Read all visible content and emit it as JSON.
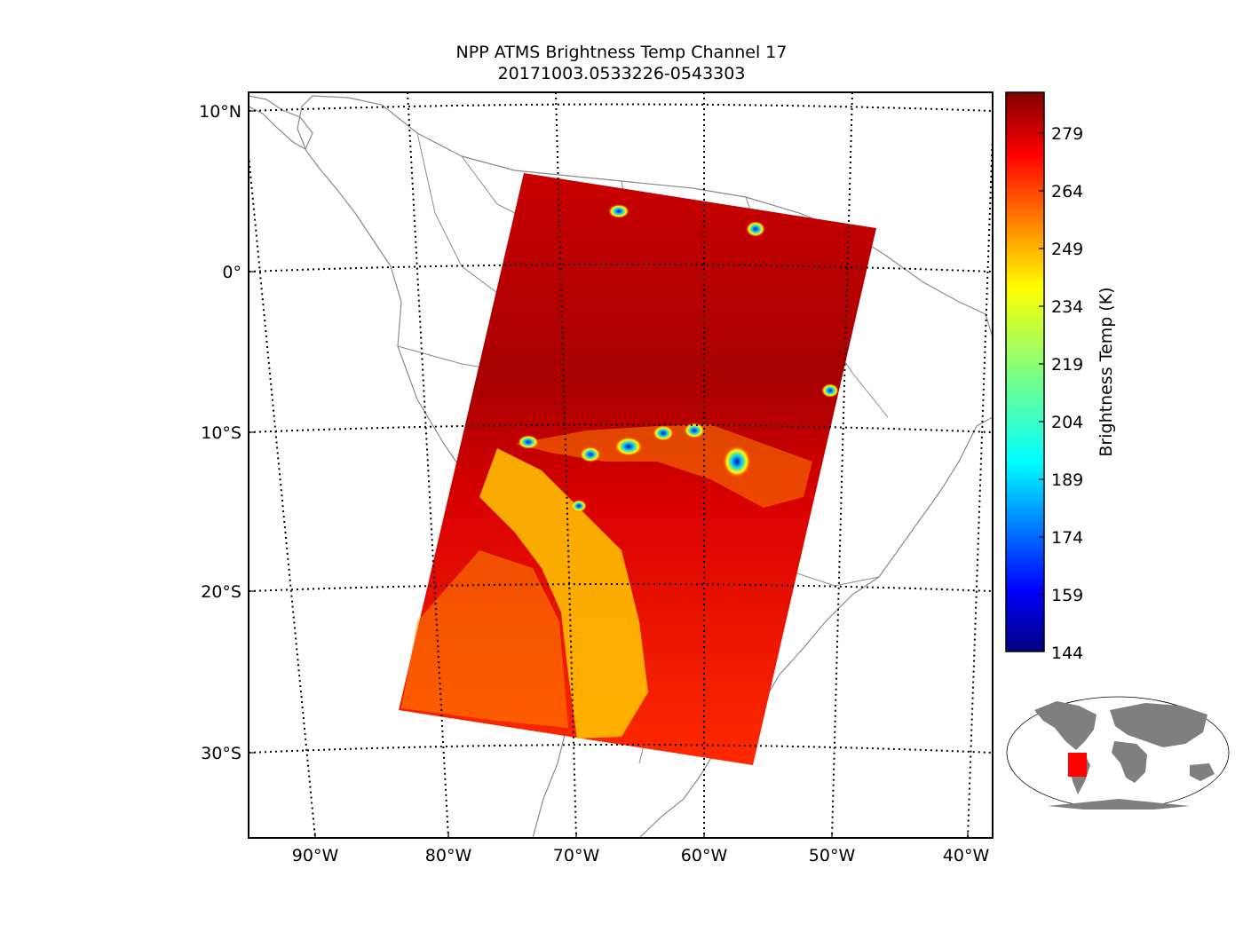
{
  "title": "NPP ATMS Brightness Temp Channel 17",
  "subtitle": "20171003.0533226-0543303",
  "map": {
    "lat_labels": [
      "10°N",
      "0°",
      "10°S",
      "20°S",
      "30°S"
    ],
    "lon_labels": [
      "90°W",
      "80°W",
      "70°W",
      "60°W",
      "50°W",
      "40°W"
    ],
    "lat_range": [
      -35,
      11
    ],
    "lon_range": [
      -95,
      -38
    ],
    "gridlines": "dotted",
    "swath_corners": [
      {
        "lon": -75,
        "lat": 6
      },
      {
        "lon": -47,
        "lat": 3
      },
      {
        "lon": -56,
        "lat": -30
      },
      {
        "lon": -84,
        "lat": -27
      }
    ]
  },
  "colorbar": {
    "label": "Brightness Temp (K)",
    "ticks": [
      "279",
      "264",
      "249",
      "234",
      "219",
      "204",
      "189",
      "174",
      "159",
      "144"
    ],
    "min": 144,
    "max": 290,
    "colormap": "jet"
  },
  "colors": {
    "land_outline": "#8a8a8a",
    "grid": "#000000",
    "inset_land": "#7f7f7f",
    "swath_highlight": "#ff0000"
  }
}
